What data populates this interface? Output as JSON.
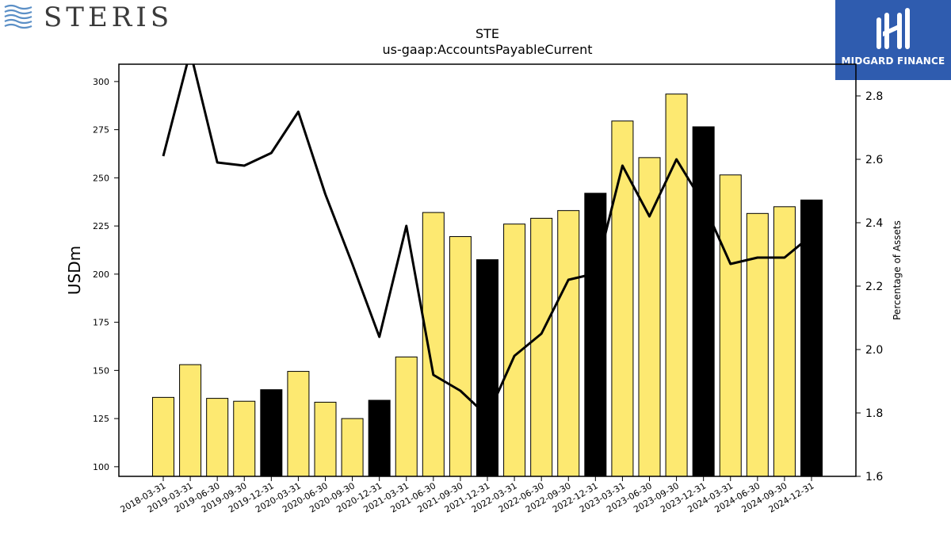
{
  "logos": {
    "left_brand": "STERIS",
    "right_brand": "MIDGARD FINANCE"
  },
  "chart_data": {
    "type": "bar",
    "title": "STE",
    "subtitle": "us-gaap:AccountsPayableCurrent",
    "ylabel": "USDm",
    "y2label": "Percentage of Assets",
    "ylim": [
      95,
      309
    ],
    "y2lim": [
      1.6,
      2.9
    ],
    "yticks": [
      100,
      125,
      150,
      175,
      200,
      225,
      250,
      275,
      300
    ],
    "y2ticks": [
      1.6,
      1.8,
      2.0,
      2.2,
      2.4,
      2.6,
      2.8
    ],
    "categories": [
      "2018-03-31",
      "2019-03-31",
      "2019-06-30",
      "2019-09-30",
      "2019-12-31",
      "2020-03-31",
      "2020-06-30",
      "2020-09-30",
      "2020-12-31",
      "2021-03-31",
      "2021-06-30",
      "2021-09-30",
      "2021-12-31",
      "2022-03-31",
      "2022-06-30",
      "2022-09-30",
      "2022-12-31",
      "2023-03-31",
      "2023-06-30",
      "2023-09-30",
      "2023-12-31",
      "2024-03-31",
      "2024-06-30",
      "2024-09-30",
      "2024-12-31"
    ],
    "series": [
      {
        "kind": "bar",
        "values": [
          136,
          153,
          135.5,
          134,
          140,
          149.5,
          133.5,
          125,
          134.5,
          157,
          232,
          219.5,
          207.5,
          226,
          229,
          233,
          242,
          279.5,
          260.5,
          293.5,
          276.5,
          251.5,
          231.5,
          235,
          238.5
        ],
        "highlight": [
          false,
          false,
          false,
          false,
          true,
          false,
          false,
          false,
          true,
          false,
          false,
          false,
          true,
          false,
          false,
          false,
          true,
          false,
          false,
          false,
          true,
          false,
          false,
          false,
          true
        ]
      },
      {
        "kind": "line",
        "axis": "right",
        "values": [
          2.61,
          2.94,
          2.59,
          2.58,
          2.62,
          2.75,
          2.49,
          2.27,
          2.04,
          2.39,
          1.92,
          1.87,
          1.79,
          1.98,
          2.05,
          2.22,
          2.24,
          2.58,
          2.42,
          2.6,
          2.46,
          2.27,
          2.29,
          2.29,
          2.36
        ]
      }
    ],
    "colors": {
      "bar": "#fde971",
      "bar_highlight": "#000000",
      "line": "#000000"
    },
    "grid": false
  }
}
